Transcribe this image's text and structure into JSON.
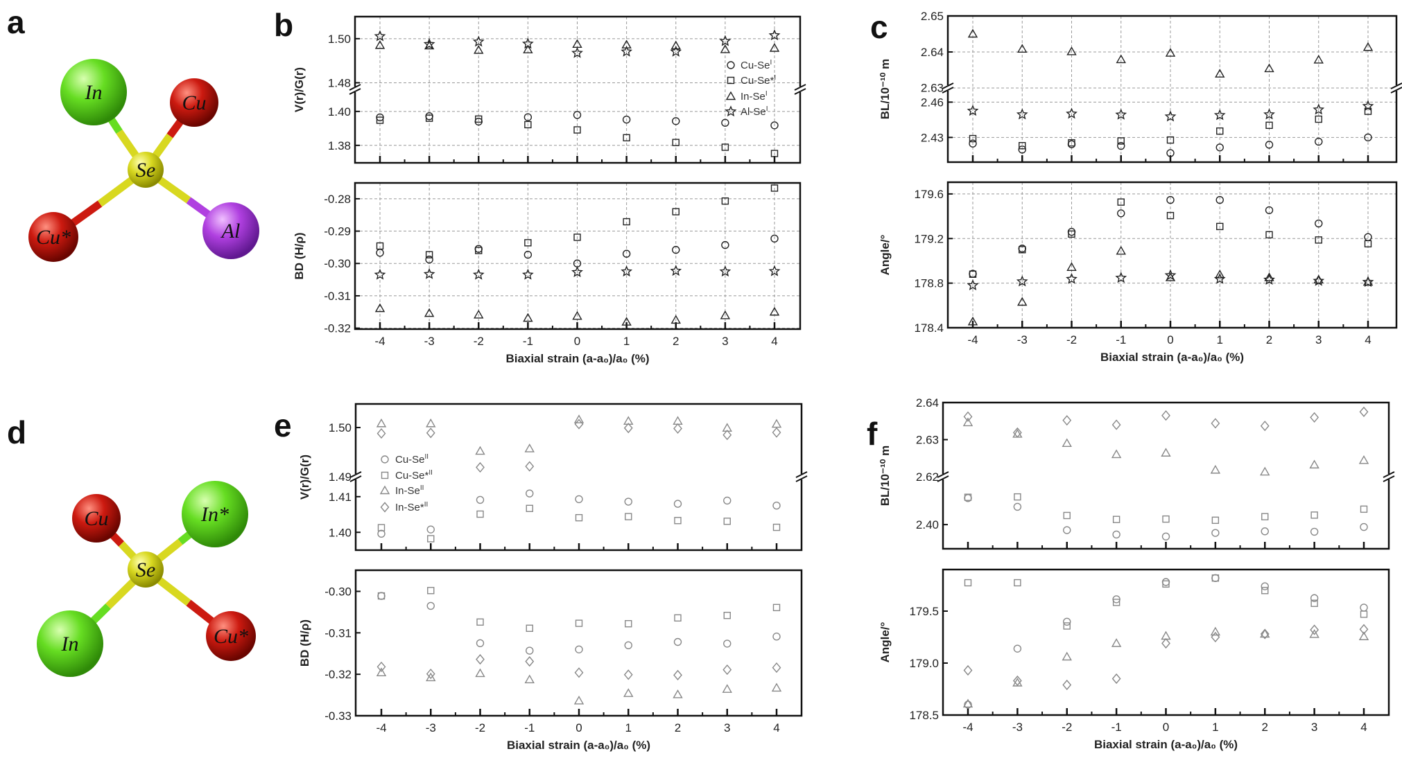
{
  "molecules": [
    {
      "panel": "a",
      "atoms": [
        "In",
        "Cu",
        "Se",
        "Cu*",
        "Al"
      ]
    },
    {
      "panel": "d",
      "atoms": [
        "Cu",
        "In*",
        "Se",
        "In",
        "Cu*"
      ]
    }
  ],
  "colors": {
    "Se": "#d8d820",
    "Cu": "#cc1a10",
    "In": "#66dd22",
    "Al": "#b040e0",
    "bw_markers": "#222222",
    "gray_markers": "#888888"
  },
  "chart_data": [
    {
      "panel": "b",
      "type": "scatter",
      "grid": true,
      "marker_color": "#222222",
      "x": [
        -4,
        -3,
        -2,
        -1,
        0,
        1,
        2,
        3,
        4
      ],
      "xticks": [
        "-4",
        "-3",
        "-2",
        "-1",
        "0",
        "1",
        "2",
        "3",
        "4"
      ],
      "xlabel": "Biaxial strain (a-a₀)/a₀ (%)",
      "legend": {
        "placement": "top-right (upper subplot)",
        "entries": [
          {
            "name": "Cu-Se",
            "sup": "I",
            "marker": "circle"
          },
          {
            "name": "Cu-Se*",
            "sup": "I",
            "marker": "square"
          },
          {
            "name": "In-Se",
            "sup": "I",
            "marker": "triangle"
          },
          {
            "name": "Al-Se",
            "sup": "I",
            "marker": "star"
          }
        ]
      },
      "subplots": [
        {
          "ylabel": "V(r)/G(r)",
          "axis_break": true,
          "segments": [
            {
              "ylim": [
                1.477,
                1.51
              ],
              "ticks": [
                "1.48",
                "1.50"
              ]
            },
            {
              "ylim": [
                1.3697,
                1.413
              ],
              "ticks": [
                "1.38",
                "1.40"
              ]
            }
          ],
          "series": [
            {
              "marker": "circle",
              "values": [
                1.3965,
                1.3972,
                1.394,
                1.3966,
                1.3979,
                1.3952,
                1.3943,
                1.3933,
                1.3918
              ]
            },
            {
              "marker": "square",
              "values": [
                1.3948,
                1.396,
                1.3955,
                1.3922,
                1.3891,
                1.3845,
                1.3817,
                1.3789,
                1.3752
              ]
            },
            {
              "marker": "triangle",
              "values": [
                1.497,
                1.4968,
                1.4948,
                1.495,
                1.4975,
                1.4972,
                1.4968,
                1.4951,
                1.4957
              ]
            },
            {
              "marker": "star",
              "values": [
                1.5011,
                1.4975,
                1.4986,
                1.4977,
                1.4935,
                1.4941,
                1.4941,
                1.4989,
                1.5015
              ]
            }
          ]
        },
        {
          "ylabel": "BD (H/ρ)",
          "axis_break": false,
          "segments": [
            {
              "ylim": [
                -0.3203,
                -0.2751
              ],
              "ticks": [
                "-0.32",
                "-0.31",
                "-0.30",
                "-0.29",
                "-0.28"
              ]
            }
          ],
          "series": [
            {
              "marker": "circle",
              "values": [
                -0.2967,
                -0.2988,
                -0.2955,
                -0.2973,
                -0.3,
                -0.297,
                -0.2958,
                -0.2943,
                -0.2923
              ]
            },
            {
              "marker": "square",
              "values": [
                -0.2946,
                -0.2973,
                -0.296,
                -0.2936,
                -0.2919,
                -0.2871,
                -0.284,
                -0.2807,
                -0.2767
              ]
            },
            {
              "marker": "triangle",
              "values": [
                -0.3139,
                -0.3154,
                -0.3159,
                -0.3169,
                -0.3163,
                -0.3181,
                -0.3175,
                -0.3161,
                -0.315
              ]
            },
            {
              "marker": "star",
              "values": [
                -0.3035,
                -0.3033,
                -0.3035,
                -0.3035,
                -0.3027,
                -0.3025,
                -0.3023,
                -0.3025,
                -0.3024
              ]
            }
          ]
        }
      ]
    },
    {
      "panel": "c",
      "type": "scatter",
      "grid": true,
      "marker_color": "#222222",
      "x": [
        -4,
        -3,
        -2,
        -1,
        0,
        1,
        2,
        3,
        4
      ],
      "xticks": [
        "-4",
        "-3",
        "-2",
        "-1",
        "0",
        "1",
        "2",
        "3",
        "4"
      ],
      "xlabel": "Biaxial strain (a-a₀)/a₀ (%)",
      "subplots": [
        {
          "ylabel": "BL/10⁻¹⁰ m",
          "axis_break": true,
          "segments": [
            {
              "ylim": [
                2.63,
                2.65
              ],
              "ticks": [
                "2.63",
                "2.64",
                "2.65"
              ]
            },
            {
              "ylim": [
                2.409,
                2.472
              ],
              "ticks": [
                "2.43",
                "2.46"
              ]
            }
          ],
          "series": [
            {
              "marker": "circle",
              "values": [
                2.4248,
                2.4197,
                2.4242,
                2.4228,
                2.4167,
                2.4215,
                2.4238,
                2.4264,
                2.43
              ]
            },
            {
              "marker": "square",
              "values": [
                2.429,
                2.423,
                2.4254,
                2.427,
                2.4278,
                2.4354,
                2.4403,
                2.4455,
                2.4522
              ]
            },
            {
              "marker": "triangle",
              "values": [
                2.645,
                2.6408,
                2.6401,
                2.6379,
                2.6397,
                2.6339,
                2.6354,
                2.6378,
                2.6413
              ]
            },
            {
              "marker": "star",
              "values": [
                2.4526,
                2.4495,
                2.4501,
                2.4493,
                2.4477,
                2.4489,
                2.4495,
                2.4536,
                2.4566
              ]
            }
          ]
        },
        {
          "ylabel": "Angle/°",
          "axis_break": false,
          "segments": [
            {
              "ylim": [
                178.4,
                179.705
              ],
              "ticks": [
                "178.4",
                "178.8",
                "179.2",
                "179.6"
              ]
            }
          ],
          "series": [
            {
              "marker": "circle",
              "values": [
                178.884,
                179.11,
                179.26,
                179.426,
                179.546,
                179.546,
                179.454,
                179.335,
                179.213
              ]
            },
            {
              "marker": "square",
              "values": [
                178.88,
                179.1,
                179.24,
                179.527,
                179.406,
                179.308,
                179.234,
                179.187,
                179.153
              ]
            },
            {
              "marker": "triangle",
              "values": [
                178.454,
                178.63,
                178.942,
                179.088,
                178.85,
                178.875,
                178.85,
                178.83,
                178.81
              ]
            },
            {
              "marker": "star",
              "values": [
                178.78,
                178.815,
                178.837,
                178.847,
                178.87,
                178.837,
                178.83,
                178.82,
                178.81
              ]
            }
          ]
        }
      ]
    },
    {
      "panel": "e",
      "type": "scatter",
      "grid": false,
      "marker_color": "#888888",
      "x": [
        -4,
        -3,
        -2,
        -1,
        0,
        1,
        2,
        3,
        4
      ],
      "xticks": [
        "-4",
        "-3",
        "-2",
        "-1",
        "0",
        "1",
        "2",
        "3",
        "4"
      ],
      "xlabel": "Biaxial strain (a-a₀)/a₀ (%)",
      "legend": {
        "placement": "left (upper subplot)",
        "entries": [
          {
            "name": "Cu-Se",
            "sup": "II",
            "marker": "circle"
          },
          {
            "name": "Cu-Se*",
            "sup": "II",
            "marker": "square"
          },
          {
            "name": "In-Se",
            "sup": "II",
            "marker": "triangle"
          },
          {
            "name": "In-Se*",
            "sup": "II",
            "marker": "diamond"
          }
        ]
      },
      "subplots": [
        {
          "ylabel": "V(r)/G(r)",
          "axis_break": true,
          "segments": [
            {
              "ylim": [
                1.49,
                1.5048
              ],
              "ticks": [
                "1.49",
                "1.50"
              ]
            },
            {
              "ylim": [
                1.395,
                1.4156
              ],
              "ticks": [
                "1.40",
                "1.41"
              ]
            }
          ],
          "series": [
            {
              "marker": "circle",
              "values": [
                1.3996,
                1.4008,
                1.4091,
                1.4109,
                1.4093,
                1.4086,
                1.408,
                1.4089,
                1.4075
              ]
            },
            {
              "marker": "square",
              "values": [
                1.4013,
                1.3982,
                1.4051,
                1.4067,
                1.4041,
                1.4044,
                1.4033,
                1.4031,
                1.4014
              ]
            },
            {
              "marker": "triangle",
              "values": [
                1.5008,
                1.5008,
                1.4952,
                1.4957,
                1.5016,
                1.5013,
                1.5013,
                1.4999,
                1.5007
              ]
            },
            {
              "marker": "diamond",
              "values": [
                1.4988,
                1.4989,
                1.4919,
                1.4921,
                1.5007,
                1.4999,
                1.4998,
                1.4985,
                1.499
              ]
            }
          ]
        },
        {
          "ylabel": "BD (H/ρ)",
          "axis_break": false,
          "segments": [
            {
              "ylim": [
                -0.33,
                -0.2949
              ],
              "ticks": [
                "-0.33",
                "-0.32",
                "-0.31",
                "-0.30"
              ]
            }
          ],
          "series": [
            {
              "marker": "circle",
              "values": [
                -0.3011,
                -0.3035,
                -0.3125,
                -0.3143,
                -0.314,
                -0.313,
                -0.3122,
                -0.3126,
                -0.3109
              ]
            },
            {
              "marker": "square",
              "values": [
                -0.3011,
                -0.2998,
                -0.3074,
                -0.3089,
                -0.3077,
                -0.3078,
                -0.3064,
                -0.3058,
                -0.3039
              ]
            },
            {
              "marker": "triangle",
              "values": [
                -0.3196,
                -0.3208,
                -0.3198,
                -0.3213,
                -0.3264,
                -0.3246,
                -0.3249,
                -0.3236,
                -0.3233
              ]
            },
            {
              "marker": "diamond",
              "values": [
                -0.3182,
                -0.3199,
                -0.3164,
                -0.3169,
                -0.3196,
                -0.3201,
                -0.3202,
                -0.3189,
                -0.3184
              ]
            }
          ]
        }
      ]
    },
    {
      "panel": "f",
      "type": "scatter",
      "grid": false,
      "marker_color": "#888888",
      "x": [
        -4,
        -3,
        -2,
        -1,
        0,
        1,
        2,
        3,
        4
      ],
      "xticks": [
        "-4",
        "-3",
        "-2",
        "-1",
        "0",
        "1",
        "2",
        "3",
        "4"
      ],
      "xlabel": "Biaxial strain (a-a₀)/a₀ (%)",
      "subplots": [
        {
          "ylabel": "BL/10⁻¹⁰ m",
          "axis_break": true,
          "segments": [
            {
              "ylim": [
                2.62,
                2.64
              ],
              "ticks": [
                "2.62",
                "2.63",
                "2.64"
              ]
            },
            {
              "ylim": [
                2.3939,
                2.4121
              ],
              "ticks": [
                "2.40"
              ]
            }
          ],
          "series": [
            {
              "marker": "circle",
              "values": [
                2.4067,
                2.4045,
                2.3986,
                2.3975,
                2.397,
                2.3979,
                2.3983,
                2.3982,
                2.3994
              ]
            },
            {
              "marker": "square",
              "values": [
                2.4069,
                2.407,
                2.4023,
                2.4013,
                2.4014,
                2.4011,
                2.402,
                2.4024,
                2.4039
              ]
            },
            {
              "marker": "triangle",
              "values": [
                2.6346,
                2.6315,
                2.629,
                2.626,
                2.6264,
                2.6218,
                2.6213,
                2.6232,
                2.6244
              ]
            },
            {
              "marker": "diamond",
              "values": [
                2.6362,
                2.6319,
                2.6352,
                2.634,
                2.6365,
                2.6344,
                2.6337,
                2.636,
                2.6375
              ]
            }
          ]
        },
        {
          "ylabel": "Angle/°",
          "axis_break": false,
          "segments": [
            {
              "ylim": [
                178.5,
                179.9
              ],
              "ticks": [
                "178.5",
                "179.0",
                "179.5"
              ]
            }
          ],
          "series": [
            {
              "marker": "circle",
              "values": [
                178.6,
                179.139,
                179.398,
                179.614,
                179.78,
                179.818,
                179.739,
                179.625,
                179.534
              ]
            },
            {
              "marker": "square",
              "values": [
                179.773,
                179.773,
                179.357,
                179.584,
                179.761,
                179.818,
                179.698,
                179.575,
                179.47
              ]
            },
            {
              "marker": "triangle",
              "values": [
                178.607,
                178.81,
                179.06,
                179.19,
                179.26,
                179.3,
                179.28,
                179.277,
                179.255
              ]
            },
            {
              "marker": "diamond",
              "values": [
                178.93,
                178.83,
                178.79,
                178.85,
                179.19,
                179.25,
                179.28,
                179.32,
                179.325
              ]
            }
          ]
        }
      ]
    }
  ]
}
